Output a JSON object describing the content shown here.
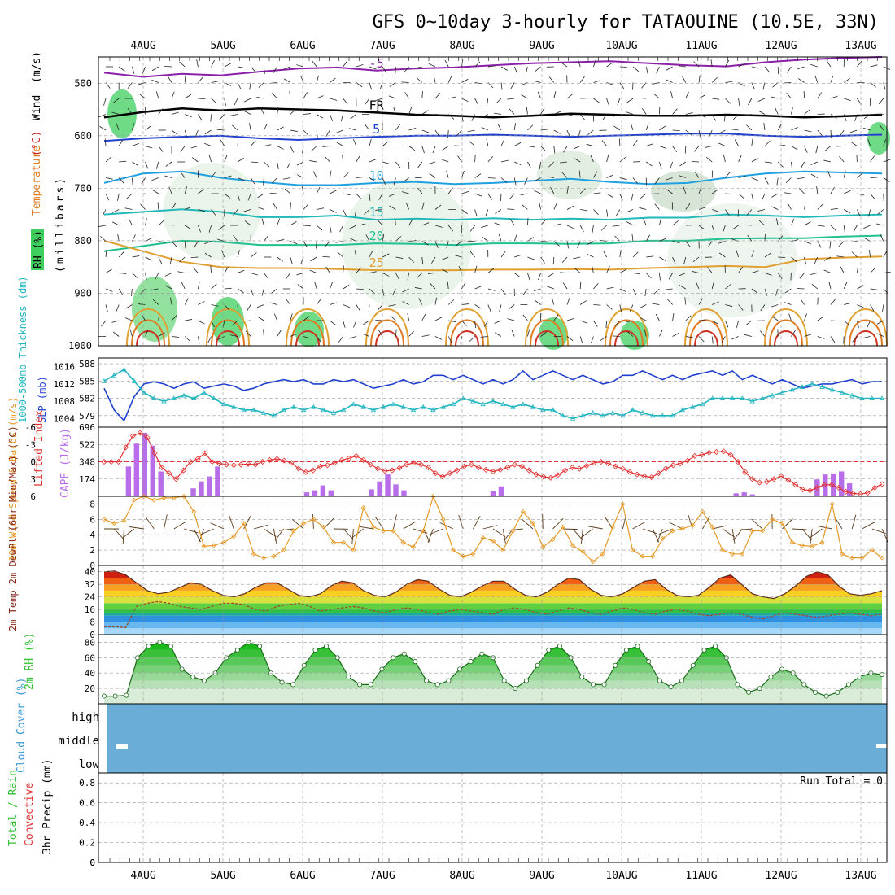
{
  "title": "GFS 0~10day 3-hourly for TATAOUINE (10.5E, 33N)",
  "dates": [
    "4AUG",
    "5AUG",
    "6AUG",
    "7AUG",
    "8AUG",
    "9AUG",
    "10AUG",
    "11AUG",
    "12AUG",
    "13AUG"
  ],
  "colors": {
    "grid": "#9a9a9a",
    "slp": "#1f3fcf",
    "thick": "#22b5c0",
    "li": "#e23232",
    "cape": "#b86ee8",
    "wind": "#e69a28",
    "barb": "#5a3a1a",
    "rh": "#2fbf2f",
    "cloud": "#6aaed8",
    "dew": "#9a4a2a",
    "frame": "#000000"
  },
  "chart_data": [
    {
      "panel": "upper-air",
      "type": "contour",
      "ylabel_parts": [
        "RH (%)",
        "Temperature",
        "(°C)",
        "Wind",
        "(m/s)"
      ],
      "ylabel2": "(millibars)",
      "ylim": [
        1000,
        450
      ],
      "yticks": [
        500,
        600,
        700,
        800,
        900,
        1000
      ],
      "rh_levels": [
        10,
        30,
        50
      ],
      "isotherms": [
        {
          "label": "-5",
          "color": "#8a1fa8",
          "p": [
            480,
            488,
            482,
            485,
            478,
            472,
            470,
            476,
            472,
            470,
            466,
            462,
            460,
            458,
            462,
            466,
            468,
            460,
            455,
            452,
            450
          ]
        },
        {
          "label": "FR",
          "color": "#000000",
          "p": [
            565,
            555,
            548,
            552,
            548,
            550,
            552,
            556,
            560,
            562,
            565,
            562,
            558,
            560,
            562,
            562,
            560,
            562,
            565,
            563,
            560
          ]
        },
        {
          "label": "5",
          "color": "#2040d0",
          "p": [
            610,
            605,
            602,
            600,
            605,
            608,
            605,
            602,
            600,
            600,
            598,
            600,
            602,
            600,
            598,
            596,
            596,
            600,
            602,
            600,
            598
          ]
        },
        {
          "label": "10",
          "color": "#1fa0e0",
          "p": [
            690,
            672,
            668,
            680,
            688,
            694,
            694,
            690,
            688,
            692,
            690,
            686,
            682,
            688,
            692,
            690,
            680,
            672,
            668,
            670,
            672
          ]
        },
        {
          "label": "15",
          "color": "#20b8b8",
          "p": [
            750,
            745,
            740,
            745,
            755,
            755,
            752,
            760,
            758,
            760,
            757,
            760,
            758,
            760,
            756,
            756,
            750,
            752,
            755,
            752,
            750
          ]
        },
        {
          "label": "20",
          "color": "#20c090",
          "p": [
            820,
            810,
            800,
            802,
            808,
            808,
            808,
            805,
            806,
            808,
            805,
            805,
            806,
            805,
            800,
            800,
            796,
            795,
            795,
            792,
            790
          ]
        },
        {
          "label": "25",
          "color": "#e0a030",
          "p": [
            800,
            820,
            840,
            850,
            852,
            852,
            854,
            856,
            856,
            856,
            855,
            855,
            854,
            855,
            852,
            850,
            848,
            850,
            835,
            832,
            830
          ]
        }
      ]
    },
    {
      "panel": "slp-thickness",
      "type": "line",
      "ylabel_left": "1000-500mb Thickness (dm)",
      "ylabel_right": "SLP (mb)",
      "yticks_left": [
        579,
        582,
        585,
        588
      ],
      "yticks_right": [
        1004,
        1008,
        1012,
        1016
      ],
      "series": [
        {
          "name": "SLP",
          "axis": "right",
          "values": [
            1011,
            1006,
            1003.5,
            1009,
            1012,
            1012.5,
            1012,
            1011,
            1012,
            1012.5,
            1011,
            1011.5,
            1012,
            1011.5,
            1010.5,
            1011,
            1012,
            1012.5,
            1013,
            1012.5,
            1013,
            1012,
            1012,
            1013,
            1012.5,
            1013,
            1012,
            1011,
            1011.5,
            1012,
            1013,
            1012,
            1012.5,
            1014,
            1014,
            1013,
            1014,
            1013,
            1012,
            1013,
            1012,
            1013,
            1015,
            1013,
            1014,
            1015,
            1014,
            1013,
            1014,
            1013,
            1012,
            1012.5,
            1014,
            1014,
            1015,
            1014,
            1013,
            1014,
            1013,
            1014,
            1014.5,
            1015,
            1014,
            1015,
            1013,
            1014,
            1013,
            1012,
            1013,
            1012,
            1011,
            1011.5,
            1012,
            1012,
            1012.5,
            1013,
            1012,
            1012.5,
            1012.5
          ]
        },
        {
          "name": "Thickness",
          "axis": "left",
          "values": [
            585,
            586,
            587,
            585,
            583,
            582,
            581.5,
            582,
            582.5,
            582,
            583,
            582,
            581,
            580.5,
            580,
            580,
            579.5,
            579,
            580,
            580.5,
            580,
            580.5,
            580,
            579.5,
            580,
            581,
            580.5,
            580,
            580.5,
            581,
            580.5,
            580,
            580.5,
            580,
            580.5,
            581,
            582,
            581.5,
            581,
            581.5,
            581,
            580.5,
            581,
            580.5,
            580,
            580,
            579,
            578.5,
            579,
            579.5,
            579,
            579.5,
            579,
            580,
            579.5,
            579,
            579,
            579,
            580,
            580.5,
            581,
            582,
            582,
            582,
            582,
            581.5,
            582,
            582.5,
            583,
            583.5,
            584,
            584.5,
            584,
            583.5,
            583,
            582.5,
            582,
            582,
            582
          ]
        }
      ]
    },
    {
      "panel": "cape-li",
      "type": "bar+line",
      "ylabel_left": "Lifted Index",
      "ylabel_right": "CAPE (J/kg)",
      "yticks_left": [
        -6,
        -3,
        0,
        3,
        6
      ],
      "yticks_right": [
        174,
        348,
        522,
        696
      ],
      "cape": [
        0,
        0,
        0,
        300,
        530,
        640,
        510,
        250,
        0,
        0,
        0,
        80,
        150,
        200,
        300,
        0,
        0,
        0,
        0,
        0,
        0,
        0,
        0,
        0,
        0,
        40,
        60,
        110,
        60,
        0,
        0,
        0,
        0,
        70,
        150,
        220,
        120,
        60,
        0,
        0,
        0,
        0,
        0,
        0,
        0,
        0,
        0,
        0,
        50,
        100,
        0,
        0,
        0,
        0,
        0,
        0,
        0,
        0,
        0,
        0,
        0,
        0,
        0,
        0,
        0,
        0,
        0,
        0,
        0,
        0,
        0,
        0,
        0,
        0,
        0,
        0,
        0,
        0,
        30,
        40,
        20,
        0,
        0,
        0,
        0,
        0,
        0,
        0,
        170,
        220,
        230,
        250,
        130,
        0,
        0,
        0,
        0
      ],
      "li": [
        0,
        0,
        0,
        -2.5,
        -4.5,
        -5,
        -4.2,
        -1.5,
        1,
        2,
        3,
        1.5,
        0,
        -0.5,
        -1.5,
        0,
        0.3,
        0.5,
        0.6,
        0.5,
        0.4,
        0.5,
        0,
        -0.3,
        -0.5,
        -0.2,
        0.2,
        1.2,
        1.8,
        1.5,
        0.8,
        0.6,
        0.2,
        -0.3,
        -0.6,
        -1,
        -0.3,
        0.5,
        1.2,
        1.6,
        1.5,
        1.1,
        0.5,
        0.2,
        0.5,
        1,
        2,
        2.6,
        2,
        1.5,
        0.8,
        0.5,
        1,
        1.4,
        1.7,
        1.4,
        1,
        0.5,
        0.8,
        1.5,
        2.2,
        2.6,
        2.8,
        2.3,
        1.5,
        1,
        1.2,
        0.7,
        0.2,
        0,
        0.3,
        0.8,
        1.2,
        1.8,
        2.2,
        2.5,
        2.7,
        2,
        1.2,
        0.6,
        0.3,
        -0.2,
        -1,
        -1.2,
        -1.6,
        -1.7,
        -1.8,
        -1.2,
        0,
        1.8,
        3,
        3.6,
        3.5,
        3,
        2.5,
        3.2,
        4,
        4.8,
        5,
        4.5,
        4,
        4,
        4.5,
        5.2,
        5.5,
        5.6,
        5.4,
        4.5,
        3.9
      ]
    },
    {
      "panel": "wind",
      "type": "line",
      "ylabel": "10m Wind Speed & Barbs (m/s)",
      "yticks": [
        0,
        2,
        4,
        6,
        8
      ],
      "values": [
        6,
        5.5,
        5.8,
        8.5,
        9,
        8.5,
        8.8,
        8.8,
        9,
        7,
        2.5,
        2.6,
        3,
        3.8,
        5.5,
        1.5,
        1,
        1.2,
        2,
        4.5,
        5.5,
        6,
        5,
        3,
        3,
        2,
        7.5,
        5,
        4.5,
        4.5,
        3,
        2.4,
        4.5,
        9,
        6,
        2,
        1.2,
        1.5,
        3.6,
        3.2,
        2,
        4.5,
        7,
        5.5,
        2.4,
        3.4,
        5,
        2.6,
        1.8,
        0.5,
        1.5,
        5,
        8,
        2,
        1.2,
        1.2,
        3.5,
        4.5,
        4.8,
        5.2,
        7,
        5,
        2,
        1.5,
        1.5,
        4.5,
        4.5,
        6,
        5.5,
        3,
        2.6,
        2.5,
        3,
        8,
        1.5,
        1,
        1,
        2,
        1
      ]
    },
    {
      "panel": "temp",
      "type": "area+line",
      "ylabel": "2m Temp 2m DewPt (6hr Min/Max) (°C)",
      "yticks": [
        0,
        8,
        16,
        24,
        32,
        40
      ],
      "temp": [
        40,
        40.5,
        38,
        33,
        28,
        26,
        27,
        30,
        33,
        32,
        28,
        25,
        24,
        26,
        30,
        33,
        33,
        29,
        25,
        24,
        26,
        31,
        34,
        33,
        28,
        25,
        24,
        27,
        32,
        35,
        34,
        29,
        25,
        24,
        27,
        31,
        34,
        34,
        29,
        25,
        24,
        27,
        32,
        36,
        35,
        29,
        25,
        24,
        26,
        30,
        34,
        35,
        29,
        25,
        24,
        25,
        30,
        36,
        38,
        32,
        26,
        24,
        23,
        26,
        31,
        37,
        40,
        38,
        31,
        26,
        25,
        26,
        28
      ],
      "dew": [
        5,
        5,
        4.5,
        18,
        20,
        21,
        20,
        18,
        17,
        16,
        18,
        20,
        20,
        19,
        16,
        15,
        18,
        19,
        20,
        18,
        15,
        16,
        17,
        18,
        17,
        15,
        14,
        16,
        17,
        16,
        14,
        13,
        15,
        16,
        15,
        14,
        13,
        16,
        17,
        16,
        14,
        13,
        15,
        17,
        16,
        14,
        13,
        15,
        17,
        16,
        14,
        13,
        15,
        16,
        15,
        13,
        12,
        13,
        14,
        13,
        11,
        10,
        12,
        14,
        13,
        12,
        11,
        12,
        13,
        14,
        13,
        12,
        13
      ]
    },
    {
      "panel": "rh",
      "type": "area+line",
      "ylabel": "2m RH (%)",
      "yticks": [
        20,
        40,
        60,
        80
      ],
      "values": [
        10,
        10,
        11,
        60,
        75,
        80,
        75,
        45,
        35,
        30,
        40,
        60,
        70,
        80,
        75,
        40,
        28,
        25,
        50,
        70,
        75,
        60,
        35,
        25,
        25,
        45,
        60,
        65,
        55,
        30,
        25,
        30,
        45,
        55,
        65,
        60,
        30,
        20,
        30,
        50,
        70,
        75,
        60,
        35,
        25,
        25,
        50,
        70,
        75,
        55,
        30,
        22,
        30,
        50,
        70,
        75,
        60,
        25,
        15,
        20,
        35,
        45,
        40,
        25,
        15,
        10,
        15,
        25,
        35,
        40,
        38
      ]
    },
    {
      "panel": "cloud",
      "type": "heatmap",
      "ylabel": "Cloud Cover (%)",
      "levels": [
        "high",
        "middle",
        "low"
      ]
    },
    {
      "panel": "precip",
      "type": "bar",
      "ylabel": "3hr Precip (mm)",
      "legend_total": "Total / Rain",
      "legend_conv": "Convective",
      "run_total": "Run Total = 0",
      "yticks": [
        0,
        0.2,
        0.4,
        0.6,
        0.8
      ],
      "values": []
    }
  ]
}
